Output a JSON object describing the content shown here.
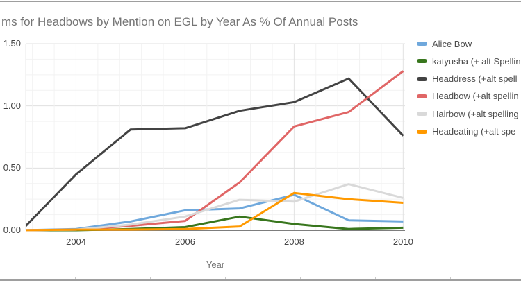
{
  "chart_data": {
    "type": "line",
    "title": "ms for Headbows by Mention on EGL by Year As % Of Annual Posts",
    "xlabel": "Year",
    "ylabel": "",
    "x": [
      2003,
      2004,
      2005,
      2006,
      2007,
      2008,
      2009,
      2010
    ],
    "x_tick_years": [
      2004,
      2006,
      2008,
      2010
    ],
    "x_tick_labels": [
      "2004",
      "2006",
      "2008",
      "2010"
    ],
    "y_ticks": [
      0,
      0.5,
      1.0,
      1.5
    ],
    "y_tick_labels": [
      "0.00",
      "0.50",
      "1.00",
      "1.50"
    ],
    "ylim": [
      0,
      1.5
    ],
    "grid": "major and minor gridlines on",
    "legend_position": "right",
    "series": [
      {
        "name": "Alice Bow",
        "color": "#6fa8dc",
        "values": [
          0,
          0.01,
          0.07,
          0.16,
          0.175,
          0.285,
          0.08,
          0.07
        ]
      },
      {
        "name": "katyusha (+ alt Spellin",
        "color": "#38761d",
        "values": [
          0,
          0,
          0.01,
          0.025,
          0.11,
          0.05,
          0.01,
          0.02
        ]
      },
      {
        "name": "Headdress (+alt spell",
        "color": "#434343",
        "values": [
          0,
          0.45,
          0.81,
          0.82,
          0.96,
          1.03,
          1.22,
          0.76
        ]
      },
      {
        "name": "Headbow (+alt spellin",
        "color": "#e06666",
        "values": [
          0,
          0.005,
          0.035,
          0.075,
          0.385,
          0.835,
          0.95,
          1.28
        ]
      },
      {
        "name": "Hairbow (+alt spelling",
        "color": "#d9d9d9",
        "values": [
          0,
          0.005,
          0.045,
          0.11,
          0.245,
          0.23,
          0.37,
          0.26
        ]
      },
      {
        "name": "Headeating (+alt spe",
        "color": "#ff9900",
        "values": [
          0,
          0.005,
          0.005,
          0.01,
          0.03,
          0.3,
          0.25,
          0.22
        ]
      }
    ]
  },
  "frame": {
    "top_border_color": "#9e9e9e",
    "bottom_border_color": "#9e9e9e"
  }
}
